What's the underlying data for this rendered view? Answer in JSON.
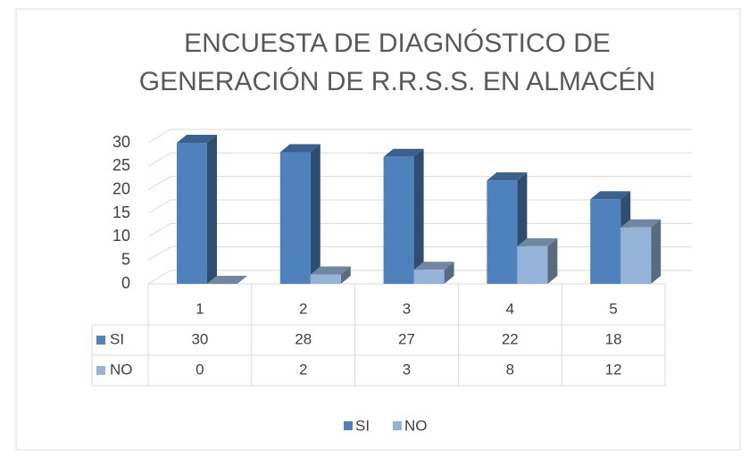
{
  "chart_data": {
    "type": "bar3d",
    "title": [
      "ENCUESTA DE DIAGNÓSTICO DE",
      "GENERACIÓN DE R.R.S.S. EN ALMACÉN"
    ],
    "categories": [
      "1",
      "2",
      "3",
      "4",
      "5"
    ],
    "series": [
      {
        "name": "SI",
        "color": "#4f81bd",
        "values": [
          30,
          28,
          27,
          22,
          18
        ]
      },
      {
        "name": "NO",
        "color": "#95b3d7",
        "values": [
          0,
          2,
          3,
          8,
          12
        ]
      }
    ],
    "ylim": [
      0,
      30
    ],
    "yticks": [
      0,
      5,
      10,
      15,
      20,
      25,
      30
    ],
    "grid": true,
    "data_table": true,
    "legend": "bottom"
  }
}
